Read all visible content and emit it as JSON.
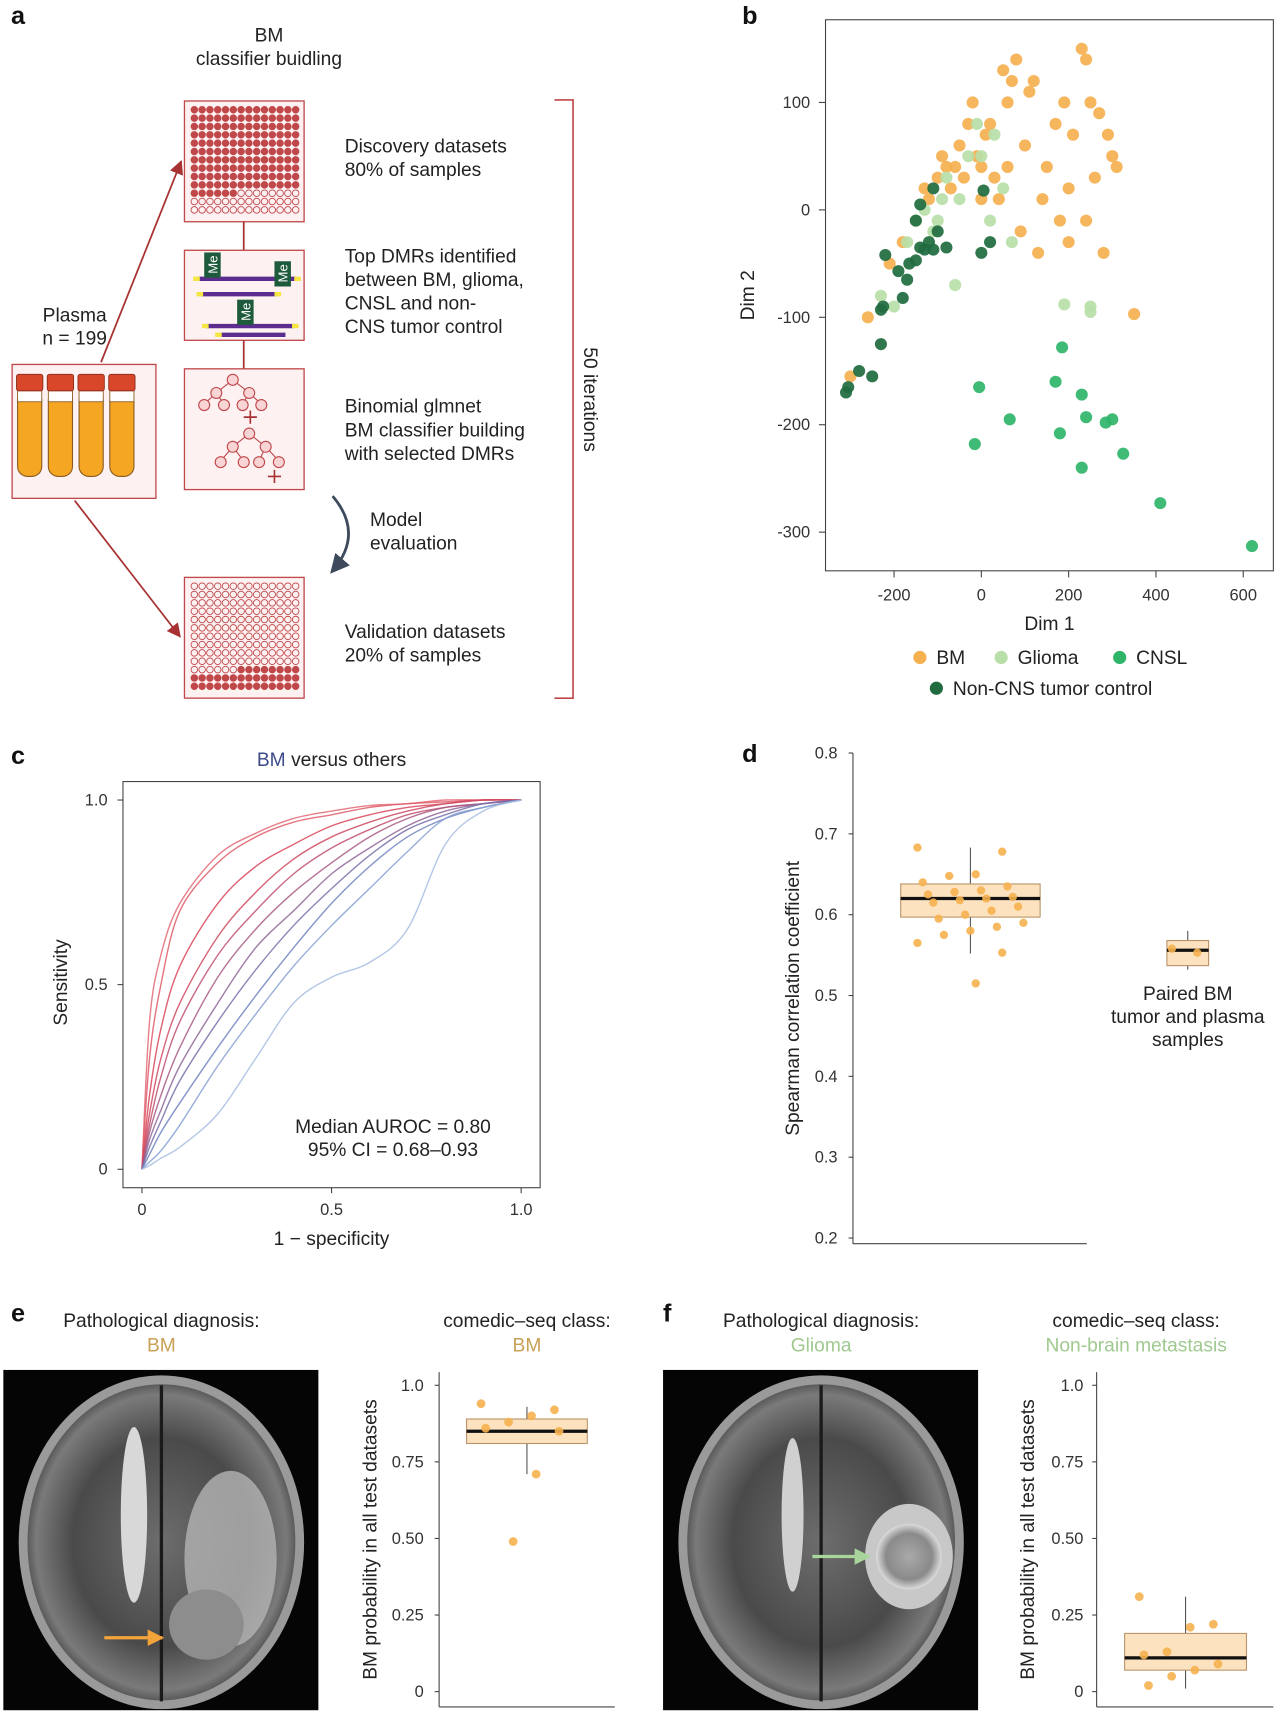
{
  "panel_labels": [
    "a",
    "b",
    "c",
    "d",
    "e",
    "f"
  ],
  "diagram": {
    "title": "BM\nclassifier buidling",
    "plasma": "Plasma",
    "plasma_n": "n = 199",
    "steps": [
      "Discovery datasets\n80% of samples",
      "Top DMRs identified\nbetween BM, glioma,\nCNSL and non-\nCNS tumor control",
      "Binomial glmnet\nBM classifier building\nwith selected DMRs",
      "Model\nevaluation",
      "Validation datasets\n20% of samples"
    ],
    "methyl_label": "Me",
    "iterations": "50 iterations"
  },
  "chart_data": [
    {
      "type": "scatter",
      "xlabel": "Dim 1",
      "ylabel": "Dim 2",
      "xlim": [
        -357,
        669
      ],
      "ylim": [
        -336,
        177
      ],
      "xticks": [
        -200,
        0,
        200,
        400,
        600
      ],
      "yticks": [
        -300,
        -200,
        -100,
        0,
        100
      ],
      "series": [
        {
          "name": "BM",
          "color": "#f5b04f",
          "x": [
            -300,
            -260,
            -210,
            -180,
            -150,
            -130,
            -120,
            -100,
            -90,
            -80,
            -60,
            -50,
            -40,
            -30,
            -20,
            -10,
            0,
            10,
            20,
            30,
            40,
            50,
            60,
            60,
            70,
            80,
            90,
            100,
            110,
            120,
            130,
            140,
            150,
            170,
            180,
            190,
            200,
            200,
            210,
            230,
            240,
            250,
            260,
            270,
            280,
            290,
            300,
            310,
            350,
            240,
            -70,
            0
          ],
          "values": [
            -155,
            -100,
            -50,
            -30,
            -10,
            20,
            10,
            30,
            50,
            40,
            40,
            60,
            30,
            80,
            100,
            50,
            40,
            70,
            80,
            30,
            10,
            130,
            100,
            40,
            120,
            140,
            -20,
            60,
            110,
            120,
            -40,
            10,
            40,
            80,
            -10,
            100,
            -30,
            20,
            70,
            150,
            140,
            100,
            30,
            90,
            -40,
            70,
            50,
            40,
            -97,
            -10,
            20,
            10
          ]
        },
        {
          "name": "Glioma",
          "color": "#b9dfa8",
          "x": [
            -230,
            -200,
            -170,
            -150,
            -130,
            -110,
            -80,
            -60,
            -50,
            -30,
            -10,
            0,
            20,
            30,
            50,
            70,
            190,
            250,
            250,
            -90,
            -100
          ],
          "values": [
            -80,
            -90,
            -30,
            -10,
            0,
            -20,
            30,
            -70,
            10,
            50,
            80,
            50,
            -10,
            70,
            20,
            -30,
            -88,
            -95,
            -90,
            10,
            -10
          ]
        },
        {
          "name": "CNSL",
          "color": "#2fb56a",
          "x": [
            -5,
            -15,
            65,
            185,
            180,
            170,
            230,
            240,
            230,
            285,
            300,
            325,
            410,
            620
          ],
          "values": [
            -165,
            -218,
            -195,
            -128,
            -208,
            -160,
            -172,
            -193,
            -240,
            -198,
            -195,
            -227,
            -273,
            -313
          ]
        },
        {
          "name": "Non-CNS tumor control",
          "color": "#1f6b3f",
          "x": [
            -310,
            -305,
            -280,
            -250,
            -230,
            -230,
            -225,
            -220,
            -190,
            -180,
            -170,
            -165,
            -150,
            -140,
            -130,
            -120,
            -110,
            -100,
            -80,
            -150,
            -140,
            -110,
            0,
            20,
            5
          ],
          "values": [
            -170,
            -165,
            -150,
            -155,
            -125,
            -93,
            -90,
            -42,
            -57,
            -82,
            -65,
            -50,
            -47,
            -35,
            -37,
            -30,
            -37,
            -20,
            -35,
            -10,
            5,
            20,
            -40,
            -30,
            18
          ]
        }
      ]
    },
    {
      "type": "line",
      "title_lead": "BM",
      "title": "versus others",
      "xlabel": "1 − specificity",
      "ylabel": "Sensitivity",
      "annotation": "Median AUROC = 0.80\n95% CI = 0.68–0.93",
      "xlim": [
        -0.05,
        1.05
      ],
      "ylim": [
        -0.05,
        1.05
      ],
      "xticks": [
        0,
        0.5,
        {
          "value": 1,
          "label": "1.0"
        }
      ],
      "yticks": [
        0,
        0.5,
        {
          "value": 1,
          "label": "1.0"
        }
      ],
      "x": [
        0,
        0.02,
        0.05,
        0.1,
        0.2,
        0.3,
        0.4,
        0.5,
        0.6,
        0.7,
        0.8,
        0.9,
        1
      ],
      "series": [
        {
          "color": "#e36a75",
          "values": [
            0,
            0.4,
            0.58,
            0.72,
            0.85,
            0.91,
            0.95,
            0.97,
            0.985,
            0.99,
            1,
            1,
            1
          ]
        },
        {
          "color": "#df5c68",
          "values": [
            0,
            0.3,
            0.5,
            0.7,
            0.83,
            0.9,
            0.94,
            0.96,
            0.98,
            0.99,
            0.995,
            1,
            1
          ]
        },
        {
          "color": "#d9475a",
          "values": [
            0,
            0.2,
            0.38,
            0.55,
            0.72,
            0.82,
            0.88,
            0.93,
            0.96,
            0.98,
            0.99,
            1,
            1
          ]
        },
        {
          "color": "#cf4a62",
          "values": [
            0,
            0.15,
            0.3,
            0.45,
            0.63,
            0.75,
            0.84,
            0.9,
            0.94,
            0.97,
            0.99,
            1,
            1
          ]
        },
        {
          "color": "#c0506e",
          "values": [
            0,
            0.12,
            0.25,
            0.4,
            0.58,
            0.7,
            0.8,
            0.87,
            0.92,
            0.96,
            0.98,
            0.99,
            1
          ]
        },
        {
          "color": "#a85a82",
          "values": [
            0,
            0.1,
            0.2,
            0.33,
            0.52,
            0.65,
            0.75,
            0.83,
            0.9,
            0.95,
            0.98,
            0.99,
            1
          ]
        },
        {
          "color": "#8f6596",
          "values": [
            0,
            0.08,
            0.16,
            0.28,
            0.45,
            0.6,
            0.7,
            0.8,
            0.87,
            0.93,
            0.97,
            0.99,
            1
          ]
        },
        {
          "color": "#7870aa",
          "values": [
            0,
            0.06,
            0.13,
            0.24,
            0.4,
            0.54,
            0.66,
            0.76,
            0.85,
            0.92,
            0.96,
            0.99,
            1
          ]
        },
        {
          "color": "#6f84c0",
          "values": [
            0,
            0.04,
            0.1,
            0.18,
            0.33,
            0.47,
            0.6,
            0.72,
            0.82,
            0.9,
            0.95,
            0.98,
            1
          ]
        },
        {
          "color": "#86a0d2",
          "values": [
            0,
            0.02,
            0.05,
            0.12,
            0.28,
            0.42,
            0.55,
            0.66,
            0.76,
            0.86,
            0.95,
            0.98,
            1
          ]
        },
        {
          "color": "#a7bde2",
          "values": [
            0,
            0.01,
            0.03,
            0.06,
            0.15,
            0.3,
            0.45,
            0.52,
            0.56,
            0.65,
            0.88,
            0.97,
            1
          ]
        }
      ]
    },
    {
      "type": "box",
      "ylabel": "Spearman correlation coefficient",
      "ylim": [
        0.193,
        0.8
      ],
      "yticks": [
        0.2,
        0.3,
        0.4,
        0.5,
        0.6,
        0.7,
        0.8
      ],
      "categories": [
        null,
        "Paired BM\ntumor and plasma\nsamples"
      ],
      "boxes": [
        {
          "q1": 0.597,
          "median": 0.62,
          "q3": 0.638,
          "whisker_low": 0.552,
          "whisker_high": 0.683,
          "points": [
            0.683,
            0.678,
            0.65,
            0.648,
            0.64,
            0.635,
            0.63,
            0.628,
            0.625,
            0.622,
            0.62,
            0.618,
            0.615,
            0.61,
            0.605,
            0.6,
            0.595,
            0.59,
            0.585,
            0.58,
            0.575,
            0.565,
            0.553,
            0.515
          ]
        },
        {
          "q1": 0.537,
          "median": 0.556,
          "q3": 0.568,
          "whisker_low": 0.532,
          "whisker_high": 0.58,
          "points": [
            0.558,
            0.553
          ]
        }
      ]
    },
    {
      "type": "box",
      "ylabel": "BM probability in all test datasets",
      "ylim": [
        -0.05,
        1.043
      ],
      "yticks": [
        0,
        0.25,
        {
          "value": 0.5,
          "label": "0.50"
        },
        0.75,
        {
          "value": 1,
          "label": "1.0"
        }
      ],
      "boxes": [
        {
          "q1": 0.81,
          "median": 0.85,
          "q3": 0.89,
          "whisker_low": 0.71,
          "whisker_high": 0.93,
          "points": [
            0.94,
            0.92,
            0.9,
            0.88,
            0.86,
            0.85,
            0.71,
            0.49
          ]
        }
      ]
    },
    {
      "type": "box",
      "ylabel": "BM probability in all test datasets",
      "ylim": [
        -0.05,
        1.043
      ],
      "yticks": [
        0,
        0.25,
        {
          "value": 0.5,
          "label": "0.50"
        },
        0.75,
        {
          "value": 1,
          "label": "1.0"
        }
      ],
      "boxes": [
        {
          "q1": 0.07,
          "median": 0.11,
          "q3": 0.19,
          "whisker_low": 0.01,
          "whisker_high": 0.31,
          "points": [
            0.31,
            0.22,
            0.21,
            0.13,
            0.12,
            0.09,
            0.07,
            0.05,
            0.02
          ]
        }
      ]
    }
  ],
  "mri": [
    {
      "diagnosis_title": "Pathological diagnosis:",
      "diagnosis": "BM",
      "class_title": "comedic–seq class:",
      "class": "BM"
    },
    {
      "diagnosis_title": "Pathological diagnosis:",
      "diagnosis": "Glioma",
      "class_title": "comedic–seq class:",
      "class": "Non-brain metastasis"
    }
  ]
}
